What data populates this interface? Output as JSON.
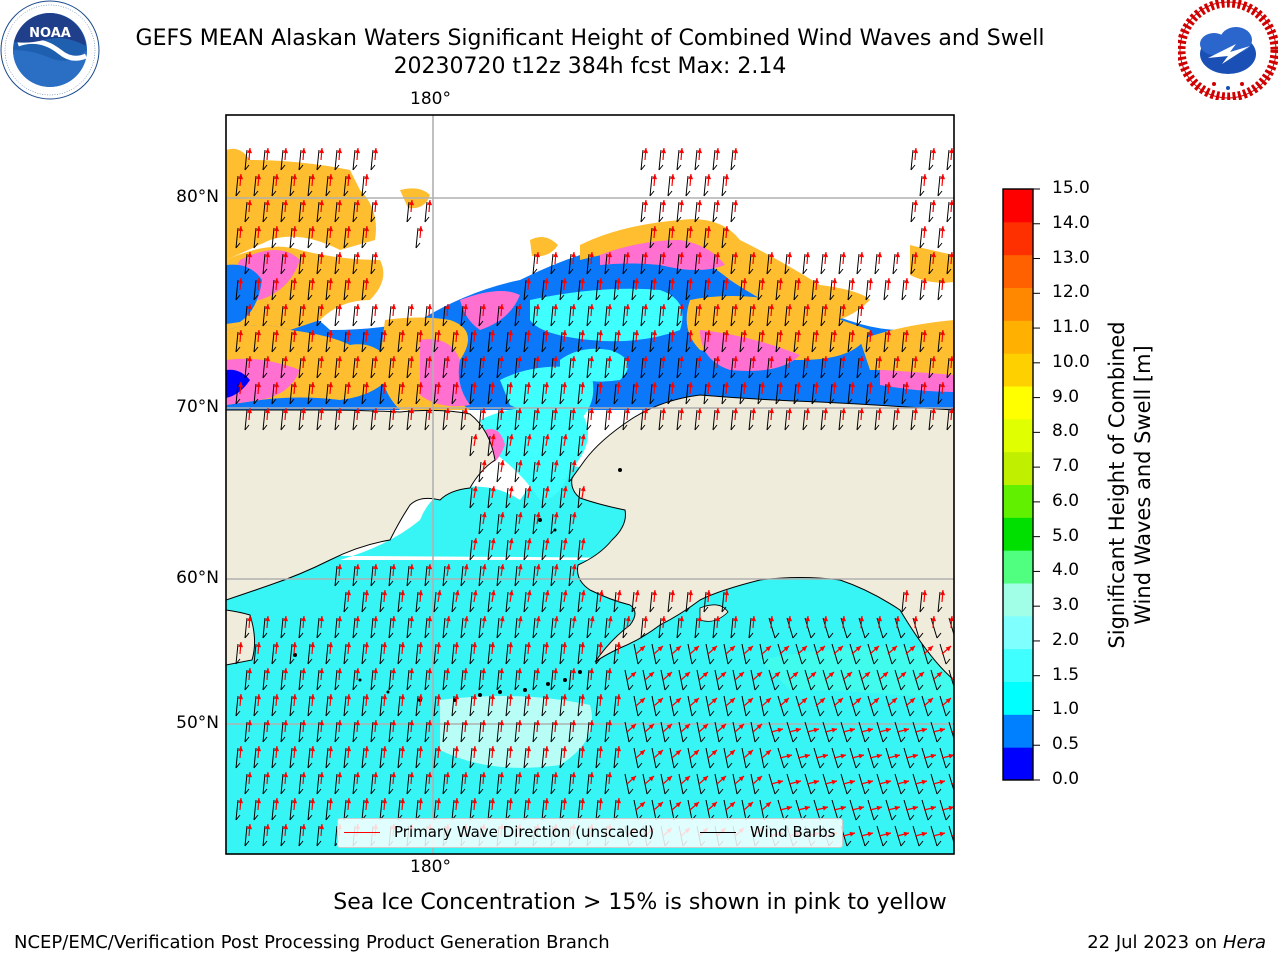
{
  "header": {
    "title": "GEFS MEAN Alaskan Waters Significant Height of Combined Wind Waves and Swell",
    "subtitle": "20230720 t12z 384h fcst   Max: 2.14"
  },
  "logos": {
    "left": {
      "name": "NOAA",
      "ring_text": "NATIONAL OCEANIC AND ATMOSPHERIC ADMINISTRATION · U.S. DEPARTMENT OF COMMERCE"
    },
    "right": {
      "name": "NATIONAL WEATHER SERVICE"
    }
  },
  "map": {
    "lon_labels": {
      "top": "180°",
      "bottom": "180°"
    },
    "lat_labels": [
      "80°N",
      "70°N",
      "60°N",
      "50°N"
    ],
    "colors": {
      "land": "#efecdc",
      "coast": "#000000",
      "grid": "#b0b0b0",
      "wave_arrow": "#ff0000",
      "wind_barb": "#000000"
    }
  },
  "legend": {
    "wave": "Primary Wave Direction (unscaled)",
    "wind": "Wind Barbs"
  },
  "colorbar": {
    "ticks": [
      "15.0",
      "14.0",
      "13.0",
      "12.0",
      "11.0",
      "10.0",
      "9.0",
      "8.0",
      "7.0",
      "6.0",
      "5.0",
      "4.0",
      "3.0",
      "2.0",
      "1.5",
      "1.0",
      "0.5",
      "0.0"
    ],
    "colors_bottom_to_top": [
      "#0000ff",
      "#0080ff",
      "#00ffff",
      "#40ffff",
      "#80ffff",
      "#a0ffe6",
      "#50ff80",
      "#00e000",
      "#60f000",
      "#c0f000",
      "#e0ff00",
      "#ffff00",
      "#ffd000",
      "#ffb000",
      "#ff8800",
      "#ff6000",
      "#ff3000",
      "#ff0000"
    ],
    "label_line1": "Significant Height of Combined",
    "label_line2": "Wind Waves and Swell [m]"
  },
  "notes": {
    "ice": "Sea Ice Concentration > 15% is shown in pink to yellow"
  },
  "footer": {
    "left": "NCEP/EMC/Verification Post Processing Product Generation Branch",
    "date": "22 Jul 2023 on ",
    "machine": "Hera"
  }
}
